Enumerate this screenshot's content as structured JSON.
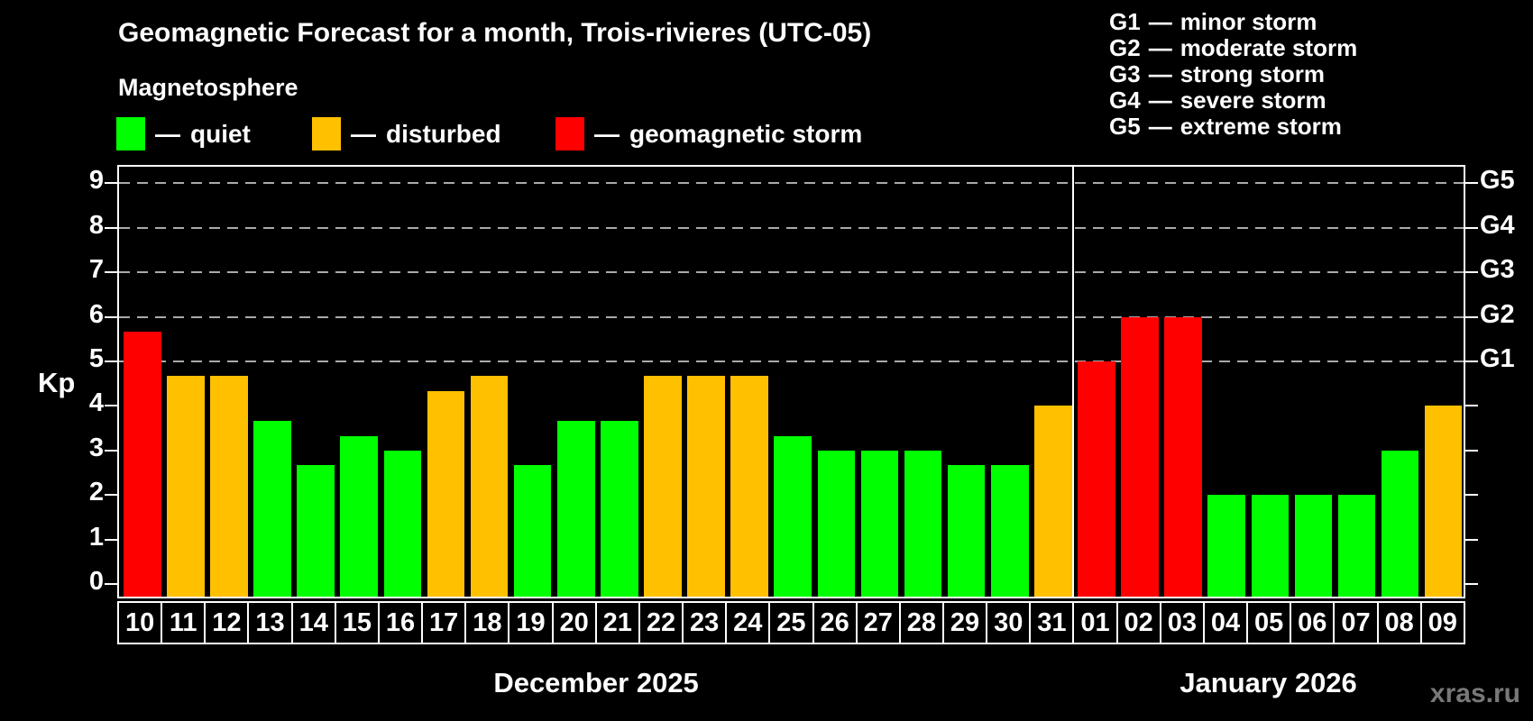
{
  "title": "Geomagnetic Forecast for a month, Trois-rivieres (UTC-05)",
  "subtitle": "Magnetosphere",
  "colors": {
    "quiet": "#00ff00",
    "disturbed": "#ffc000",
    "storm": "#ff0000",
    "axis": "#ffffff",
    "grid": "#aaaaaa",
    "watermark": "#787878"
  },
  "legend": {
    "items": [
      {
        "dash": "—",
        "label": "quiet",
        "color_key": "quiet"
      },
      {
        "dash": "—",
        "label": "disturbed",
        "color_key": "disturbed"
      },
      {
        "dash": "—",
        "label": "geomagnetic storm",
        "color_key": "storm"
      }
    ]
  },
  "storm_scale": {
    "items": [
      {
        "code": "G1",
        "dash": "—",
        "label": "minor storm"
      },
      {
        "code": "G2",
        "dash": "—",
        "label": "moderate storm"
      },
      {
        "code": "G3",
        "dash": "—",
        "label": "strong storm"
      },
      {
        "code": "G4",
        "dash": "—",
        "label": "severe storm"
      },
      {
        "code": "G5",
        "dash": "—",
        "label": "extreme storm"
      }
    ]
  },
  "axes": {
    "kp_label": "Kp",
    "left_ticks": [
      "0",
      "1",
      "2",
      "3",
      "4",
      "5",
      "6",
      "7",
      "8",
      "9"
    ],
    "g_labels": [
      {
        "kp": 5,
        "label": "G1"
      },
      {
        "kp": 6,
        "label": "G2"
      },
      {
        "kp": 7,
        "label": "G3"
      },
      {
        "kp": 8,
        "label": "G4"
      },
      {
        "kp": 9,
        "label": "G5"
      }
    ],
    "gridline_levels": [
      5,
      6,
      7,
      8,
      9
    ]
  },
  "chart_data": {
    "type": "bar",
    "title": "Geomagnetic Forecast for a month, Trois-rivieres (UTC-05)",
    "ylabel": "Kp",
    "ylim": [
      0,
      9
    ],
    "grid": "dashed horizontal at Kp 5-9",
    "legend_position": "top-left",
    "months": [
      {
        "label": "December 2025",
        "days": 22
      },
      {
        "label": "January 2026",
        "days": 9
      }
    ],
    "days": [
      {
        "d": "10",
        "kp": 5.67,
        "status": "storm"
      },
      {
        "d": "11",
        "kp": 4.67,
        "status": "disturbed"
      },
      {
        "d": "12",
        "kp": 4.67,
        "status": "disturbed"
      },
      {
        "d": "13",
        "kp": 3.67,
        "status": "quiet"
      },
      {
        "d": "14",
        "kp": 2.67,
        "status": "quiet"
      },
      {
        "d": "15",
        "kp": 3.33,
        "status": "quiet"
      },
      {
        "d": "16",
        "kp": 3.0,
        "status": "quiet"
      },
      {
        "d": "17",
        "kp": 4.33,
        "status": "disturbed"
      },
      {
        "d": "18",
        "kp": 4.67,
        "status": "disturbed"
      },
      {
        "d": "19",
        "kp": 2.67,
        "status": "quiet"
      },
      {
        "d": "20",
        "kp": 3.67,
        "status": "quiet"
      },
      {
        "d": "21",
        "kp": 3.67,
        "status": "quiet"
      },
      {
        "d": "22",
        "kp": 4.67,
        "status": "disturbed"
      },
      {
        "d": "23",
        "kp": 4.67,
        "status": "disturbed"
      },
      {
        "d": "24",
        "kp": 4.67,
        "status": "disturbed"
      },
      {
        "d": "25",
        "kp": 3.33,
        "status": "quiet"
      },
      {
        "d": "26",
        "kp": 3.0,
        "status": "quiet"
      },
      {
        "d": "27",
        "kp": 3.0,
        "status": "quiet"
      },
      {
        "d": "28",
        "kp": 3.0,
        "status": "quiet"
      },
      {
        "d": "29",
        "kp": 2.67,
        "status": "quiet"
      },
      {
        "d": "30",
        "kp": 2.67,
        "status": "quiet"
      },
      {
        "d": "31",
        "kp": 4.0,
        "status": "disturbed"
      },
      {
        "d": "01",
        "kp": 5.0,
        "status": "storm"
      },
      {
        "d": "02",
        "kp": 6.0,
        "status": "storm"
      },
      {
        "d": "03",
        "kp": 6.0,
        "status": "storm"
      },
      {
        "d": "04",
        "kp": 2.0,
        "status": "quiet"
      },
      {
        "d": "05",
        "kp": 2.0,
        "status": "quiet"
      },
      {
        "d": "06",
        "kp": 2.0,
        "status": "quiet"
      },
      {
        "d": "07",
        "kp": 2.0,
        "status": "quiet"
      },
      {
        "d": "08",
        "kp": 3.0,
        "status": "quiet"
      },
      {
        "d": "09",
        "kp": 4.0,
        "status": "disturbed"
      }
    ]
  },
  "watermark": "xras.ru"
}
